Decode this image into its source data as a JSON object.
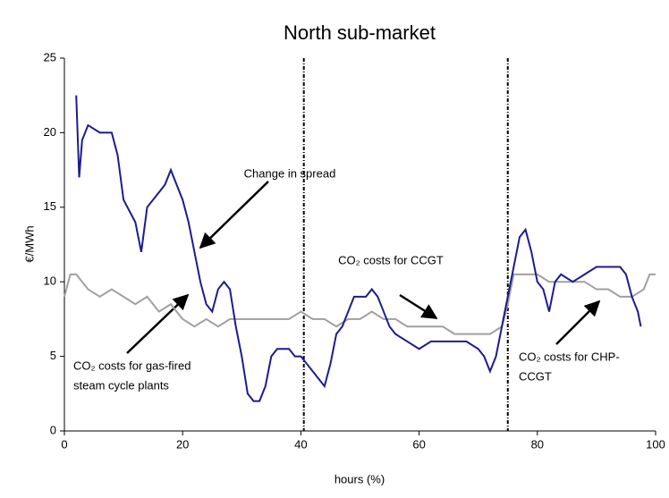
{
  "chart_data": {
    "type": "line",
    "title": "North sub-market",
    "xlabel": "hours (%)",
    "ylabel": "€/MWh",
    "xlim": [
      0,
      100
    ],
    "xticks": [
      0,
      20,
      40,
      60,
      80,
      100
    ],
    "ylim": [
      0,
      25
    ],
    "yticks": [
      0,
      5,
      10,
      15,
      20,
      25
    ],
    "vlines": [
      40.5,
      75
    ],
    "series": [
      {
        "name": "Change in spread",
        "color": "#1c1c8e",
        "x": [
          2,
          2.5,
          3,
          4,
          6,
          8,
          9,
          10,
          12,
          13,
          14,
          16,
          17,
          18,
          20,
          21,
          22,
          23,
          24,
          25,
          26,
          27,
          28,
          29,
          30,
          31,
          32,
          33,
          34,
          35,
          36,
          37,
          38,
          39,
          40,
          41,
          42,
          43,
          44,
          45,
          46,
          47,
          48,
          49,
          50,
          51,
          52,
          53,
          54,
          55,
          56,
          58,
          60,
          62,
          64,
          66,
          68,
          70,
          71,
          72,
          73,
          74,
          75,
          76,
          77,
          78,
          79,
          80,
          81,
          82,
          83,
          84,
          86,
          88,
          90,
          92,
          94,
          95,
          96,
          97,
          97.5
        ],
        "values": [
          22.5,
          17,
          19.5,
          20.5,
          20,
          20,
          18.5,
          15.5,
          14,
          12,
          15,
          16,
          16.5,
          17.5,
          15.5,
          14,
          12,
          10,
          8.5,
          8,
          9.5,
          10,
          9.5,
          7,
          5,
          2.5,
          2,
          2,
          3,
          5,
          5.5,
          5.5,
          5.5,
          5,
          5,
          4.5,
          4,
          3.5,
          3,
          4.5,
          6.5,
          7,
          8,
          9,
          9,
          9,
          9.5,
          9,
          8,
          7,
          6.5,
          6,
          5.5,
          6,
          6,
          6,
          6,
          5.5,
          5,
          4,
          5,
          7,
          9,
          11,
          13,
          13.5,
          12,
          10,
          9.5,
          8,
          10,
          10.5,
          10,
          10.5,
          11,
          11,
          11,
          10.5,
          9,
          8,
          7
        ]
      },
      {
        "name": "CO₂ costs for CCGT",
        "color": "#a0a0a0",
        "x": [
          0,
          1,
          2,
          4,
          6,
          8,
          10,
          12,
          14,
          16,
          18,
          20,
          22,
          24,
          26,
          28,
          30,
          32,
          34,
          36,
          38,
          40,
          42,
          44,
          46,
          48,
          50,
          52,
          54,
          56,
          58,
          60,
          62,
          64,
          66,
          68,
          70,
          72,
          74,
          75,
          76,
          78,
          80,
          82,
          84,
          86,
          88,
          90,
          92,
          94,
          96,
          98,
          99,
          100
        ],
        "values": [
          9,
          10.5,
          10.5,
          9.5,
          9,
          9.5,
          9,
          8.5,
          9,
          8,
          8.5,
          7.5,
          7,
          7.5,
          7,
          7.5,
          7.5,
          7.5,
          7.5,
          7.5,
          7.5,
          8,
          7.5,
          7.5,
          7,
          7.5,
          7.5,
          8,
          7.5,
          7.5,
          7,
          7,
          7,
          7,
          6.5,
          6.5,
          6.5,
          6.5,
          7,
          8.5,
          10.5,
          10.5,
          10.5,
          10,
          10,
          10,
          10,
          9.5,
          9.5,
          9,
          9,
          9.5,
          10.5,
          10.5
        ]
      }
    ],
    "annotations": [
      {
        "lines": [
          "Change in spread"
        ]
      },
      {
        "lines": [
          "CO₂ costs for CCGT"
        ]
      },
      {
        "lines": [
          "CO₂ costs for gas-fired",
          "steam cycle plants"
        ]
      },
      {
        "lines": [
          "CO₂ costs for CHP-",
          "CCGT"
        ]
      }
    ]
  }
}
